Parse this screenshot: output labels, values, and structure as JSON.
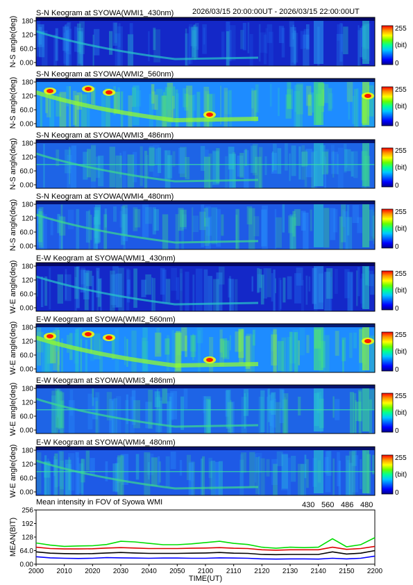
{
  "header": {
    "date_range": "2026/03/15 20:00:00UT - 2026/03/15 22:00:00UT"
  },
  "colorbar": {
    "max_label": "255",
    "unit_label": "(bit)",
    "min_label": "0",
    "colors": [
      "#00008c",
      "#0000ff",
      "#0064ff",
      "#00c8ff",
      "#00ff96",
      "#64ff00",
      "#ffff00",
      "#ff9600",
      "#ff0000"
    ]
  },
  "keograms": [
    {
      "title": "S-N Keogram at SYOWA(WMI1_430nm)",
      "ylabel": "N-S angle(deg)",
      "intensity": "dim",
      "base_color": "#1428c8"
    },
    {
      "title": "S-N Keogram at SYOWA(WMI2_560nm)",
      "ylabel": "N-S angle(deg)",
      "intensity": "bright",
      "base_color": "#1e8cff"
    },
    {
      "title": "S-N Keogram at SYOWA(WMI3_486nm)",
      "ylabel": "N-S angle(deg)",
      "intensity": "medium",
      "base_color": "#1e64e6"
    },
    {
      "title": "S-N Keogram at SYOWA(WMI4_480nm)",
      "ylabel": "N-S angle(deg)",
      "intensity": "medium",
      "base_color": "#1e5ae6"
    },
    {
      "title": "E-W Keogram at SYOWA(WMI1_430nm)",
      "ylabel": "W-E angle(deg)",
      "intensity": "dim",
      "base_color": "#1428c8"
    },
    {
      "title": "E-W Keogram at SYOWA(WMI2_560nm)",
      "ylabel": "W-E angle(deg)",
      "intensity": "bright",
      "base_color": "#1e8cff"
    },
    {
      "title": "E-W Keogram at SYOWA(WMI3_486nm)",
      "ylabel": "W-E angle(deg)",
      "intensity": "medium",
      "base_color": "#1e64e6"
    },
    {
      "title": "E-W Keogram at SYOWA(WMI4_480nm)",
      "ylabel": "W-E angle(deg)",
      "intensity": "medium",
      "base_color": "#1e5ae6"
    }
  ],
  "keogram_y_ticks": [
    "180",
    "120",
    "60.0",
    "0.00"
  ],
  "chart_data": {
    "type": "line",
    "title": "Mean intensity in FOV of Syowa WMI",
    "xlabel": "TIME(UT)",
    "ylabel": "MEAN(BIT)",
    "x_ticks": [
      "2000",
      "2010",
      "2020",
      "2030",
      "2040",
      "2050",
      "2100",
      "2110",
      "2120",
      "2130",
      "2140",
      "2150",
      "2200"
    ],
    "y_ticks": [
      "256",
      "192",
      "128",
      "64.0",
      "0.00"
    ],
    "ylim": [
      0,
      256
    ],
    "x_minutes": [
      0,
      5,
      10,
      15,
      20,
      25,
      30,
      35,
      40,
      45,
      50,
      55,
      60,
      65,
      70,
      75,
      80,
      85,
      90,
      95,
      100,
      105,
      110,
      115,
      120
    ],
    "series": [
      {
        "name": "430",
        "color": "#0000ff",
        "values": [
          35,
          30,
          28,
          27,
          28,
          31,
          30,
          29,
          28,
          29,
          29,
          28,
          28,
          30,
          29,
          28,
          25,
          24,
          25,
          25,
          24,
          28,
          25,
          28,
          38
        ]
      },
      {
        "name": "560",
        "color": "#00dd00",
        "values": [
          100,
          90,
          84,
          86,
          87,
          93,
          108,
          105,
          98,
          92,
          92,
          96,
          102,
          108,
          98,
          93,
          80,
          75,
          80,
          78,
          80,
          120,
          82,
          92,
          125
        ]
      },
      {
        "name": "486",
        "color": "#dd0000",
        "values": [
          80,
          74,
          72,
          72,
          73,
          76,
          78,
          76,
          74,
          74,
          74,
          75,
          76,
          78,
          75,
          74,
          68,
          66,
          68,
          68,
          68,
          80,
          70,
          74,
          84
        ]
      },
      {
        "name": "480",
        "color": "#000000",
        "values": [
          58,
          52,
          50,
          49,
          50,
          53,
          55,
          53,
          51,
          51,
          51,
          52,
          53,
          55,
          52,
          51,
          46,
          45,
          46,
          46,
          46,
          58,
          48,
          52,
          64
        ]
      }
    ],
    "grid": false,
    "legend": "top-right"
  }
}
